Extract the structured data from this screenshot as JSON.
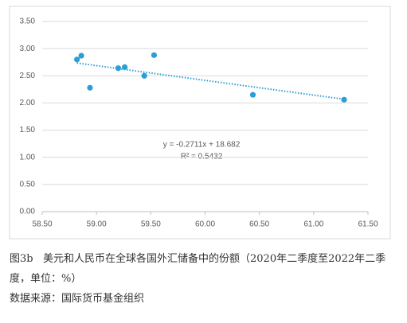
{
  "chart_data": {
    "type": "scatter",
    "x": [
      58.82,
      58.86,
      58.94,
      59.2,
      59.26,
      59.44,
      59.53,
      60.44,
      61.28
    ],
    "values": [
      2.8,
      2.87,
      2.28,
      2.64,
      2.66,
      2.5,
      2.88,
      2.15,
      2.06
    ],
    "color": "#2a9fd6",
    "xlim": [
      58.5,
      61.5
    ],
    "xticks": [
      {
        "value": 58.5,
        "label": "58.50"
      },
      {
        "value": 59,
        "label": "59.00"
      },
      {
        "value": 59.5,
        "label": "59.50"
      },
      {
        "value": 60,
        "label": "60.00"
      },
      {
        "value": 60.5,
        "label": "60.50"
      },
      {
        "value": 61,
        "label": "61.00"
      },
      {
        "value": 61.5,
        "label": "61.50"
      }
    ],
    "ylim": [
      0,
      3.5
    ],
    "yticks": [
      {
        "value": 0,
        "label": "0.00"
      },
      {
        "value": 0.5,
        "label": "0.50"
      },
      {
        "value": 1,
        "label": "1.00"
      },
      {
        "value": 1.5,
        "label": "1.50"
      },
      {
        "value": 2,
        "label": "2.00"
      },
      {
        "value": 2.5,
        "label": "2.50"
      },
      {
        "value": 3,
        "label": "3.00"
      },
      {
        "value": 3.5,
        "label": "3.50"
      }
    ],
    "grid": true,
    "trendline": {
      "slope": -0.2711,
      "intercept": 18.682,
      "equation": "y = -0.2711x + 18.682",
      "r_squared": "R² = 0.5432"
    }
  },
  "caption": {
    "figure": "图3b",
    "title": "美元和人民币在全球各国外汇储备中的份额（2020年二季度至2022年二季度，单位：%）",
    "source": "数据来源：国际货币基金组织"
  }
}
